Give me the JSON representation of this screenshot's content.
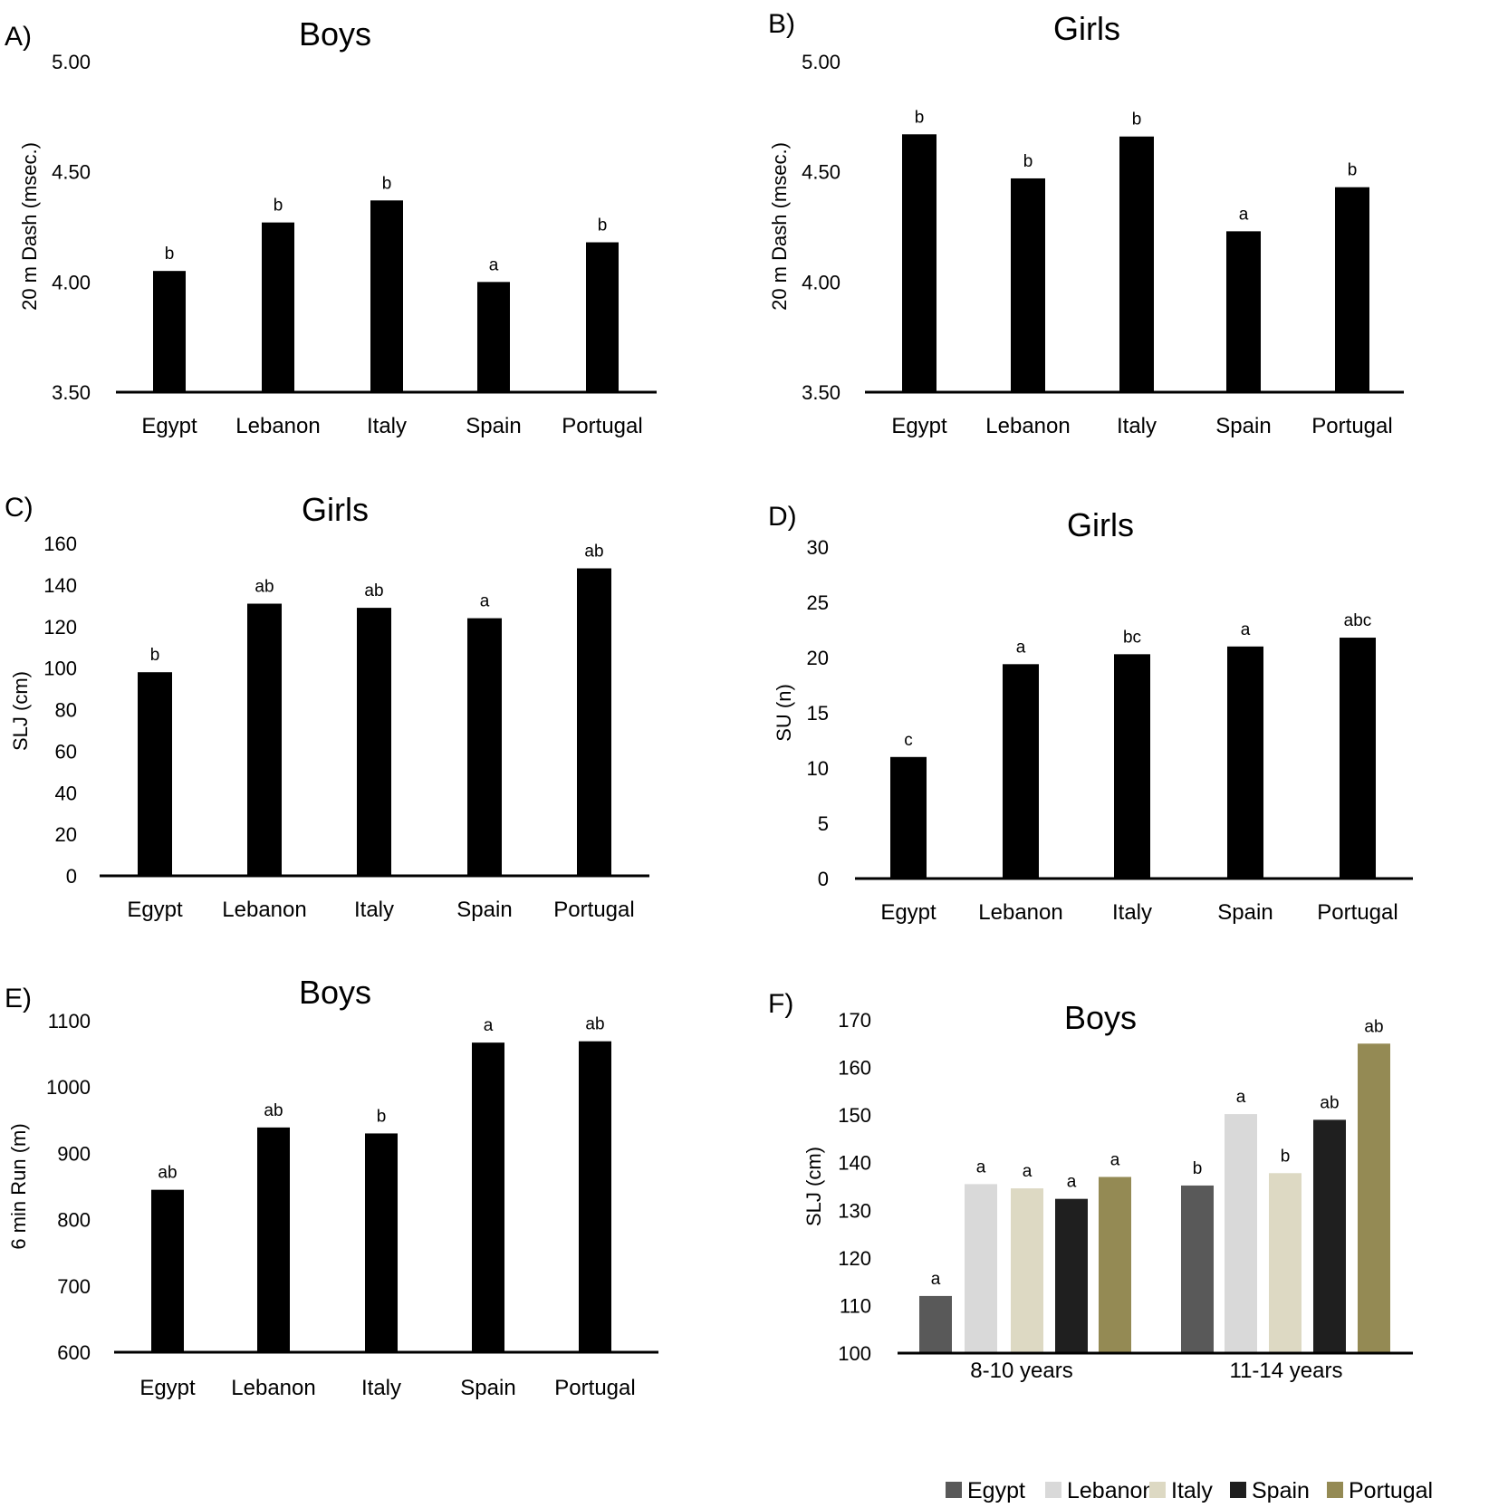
{
  "chart_data": [
    {
      "type": "bar",
      "panel": "A)",
      "title": "Boys",
      "ylabel": "20 m Dash (msec.)",
      "ylim": [
        3.5,
        5.0
      ],
      "yticks": [
        "3.50",
        "4.00",
        "4.50",
        "5.00"
      ],
      "categories": [
        "Egypt",
        "Lebanon",
        "Italy",
        "Spain",
        "Portugal"
      ],
      "values": [
        4.05,
        4.27,
        4.37,
        4.0,
        4.18
      ],
      "letters": [
        "b",
        "b",
        "b",
        "a",
        "b"
      ],
      "series_color": "#000000"
    },
    {
      "type": "bar",
      "panel": "B)",
      "title": "Girls",
      "ylabel": "20 m Dash (msec.)",
      "ylim": [
        3.5,
        5.0
      ],
      "yticks": [
        "3.50",
        "4.00",
        "4.50",
        "5.00"
      ],
      "categories": [
        "Egypt",
        "Lebanon",
        "Italy",
        "Spain",
        "Portugal"
      ],
      "values": [
        4.67,
        4.47,
        4.66,
        4.23,
        4.43
      ],
      "letters": [
        "b",
        "b",
        "b",
        "a",
        "b"
      ],
      "series_color": "#000000"
    },
    {
      "type": "bar",
      "panel": "C)",
      "title": "Girls",
      "ylabel": "SLJ (cm)",
      "ylim": [
        0,
        160
      ],
      "yticks": [
        "0",
        "20",
        "40",
        "60",
        "80",
        "100",
        "120",
        "140",
        "160"
      ],
      "categories": [
        "Egypt",
        "Lebanon",
        "Italy",
        "Spain",
        "Portugal"
      ],
      "values": [
        98,
        131,
        129,
        124,
        148
      ],
      "letters": [
        "b",
        "ab",
        "ab",
        "a",
        "ab"
      ],
      "series_color": "#000000"
    },
    {
      "type": "bar",
      "panel": "D)",
      "title": "Girls",
      "ylabel": "SU (n)",
      "ylim": [
        0,
        30
      ],
      "yticks": [
        "0",
        "5",
        "10",
        "15",
        "20",
        "25",
        "30"
      ],
      "categories": [
        "Egypt",
        "Lebanon",
        "Italy",
        "Spain",
        "Portugal"
      ],
      "values": [
        11,
        19.4,
        20.3,
        21,
        21.8
      ],
      "letters": [
        "c",
        "a",
        "bc",
        "a",
        "abc"
      ],
      "series_color": "#000000"
    },
    {
      "type": "bar",
      "panel": "E)",
      "title": "Boys",
      "ylabel": "6 min Run (m)",
      "ylim": [
        600,
        1100
      ],
      "yticks": [
        "600",
        "700",
        "800",
        "900",
        "1000",
        "1100"
      ],
      "categories": [
        "Egypt",
        "Lebanon",
        "Italy",
        "Spain",
        "Portugal"
      ],
      "values": [
        845,
        939,
        930,
        1067,
        1069
      ],
      "letters": [
        "ab",
        "ab",
        "b",
        "a",
        "ab"
      ],
      "series_color": "#000000"
    },
    {
      "type": "bar",
      "panel": "F)",
      "title": "Boys",
      "ylabel": "SLJ (cm)",
      "ylim": [
        100,
        170
      ],
      "yticks": [
        "100",
        "110",
        "120",
        "130",
        "140",
        "150",
        "160",
        "170"
      ],
      "categories": [
        "8-10 years",
        "11-14 years"
      ],
      "series": [
        {
          "name": "Egypt",
          "values": [
            112,
            135.2
          ],
          "letters": [
            "a",
            "b"
          ],
          "color": "#595959"
        },
        {
          "name": "Lebanon",
          "values": [
            135.5,
            150.2
          ],
          "letters": [
            "a",
            "a"
          ],
          "color": "#d9d9d9"
        },
        {
          "name": "Italy",
          "values": [
            134.6,
            137.8
          ],
          "letters": [
            "a",
            "b"
          ],
          "color": "#ddd9c3"
        },
        {
          "name": "Spain",
          "values": [
            132.4,
            149
          ],
          "letters": [
            "a",
            "ab"
          ],
          "color": "#1f1f1f"
        },
        {
          "name": "Portugal",
          "values": [
            137,
            165
          ],
          "letters": [
            "a",
            "ab"
          ],
          "color": "#948a54"
        }
      ],
      "legend": "bottom"
    }
  ]
}
